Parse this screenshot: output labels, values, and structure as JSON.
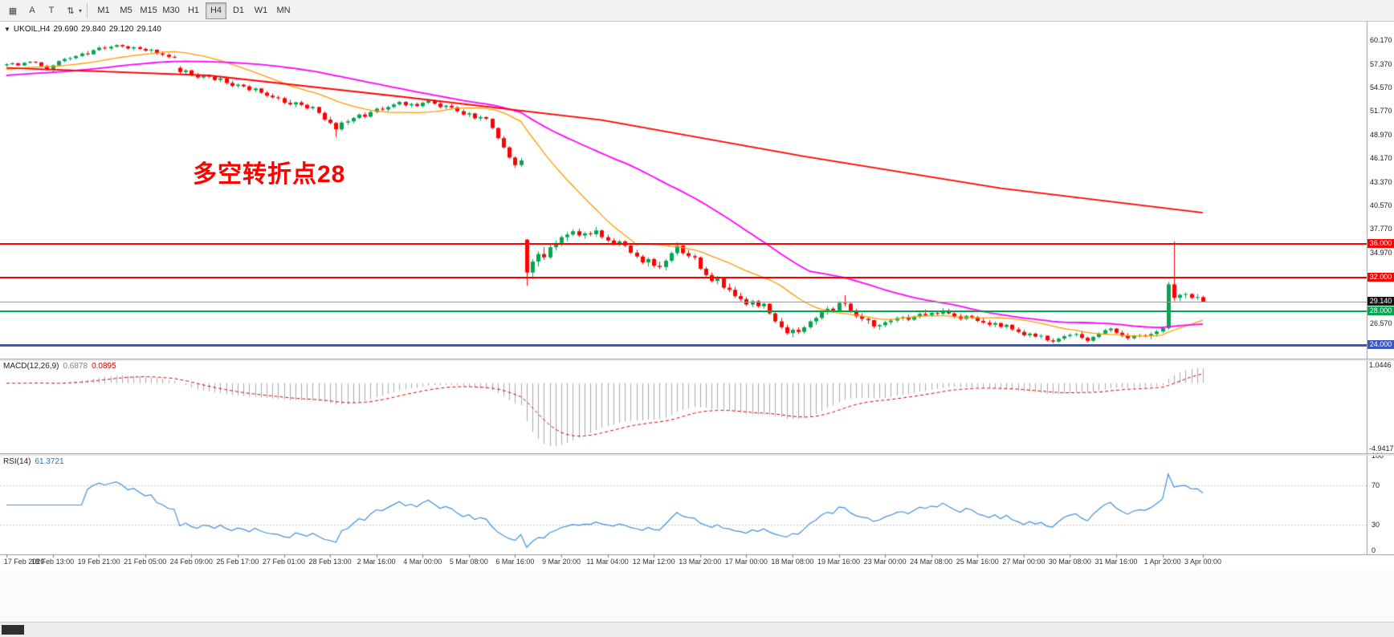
{
  "toolbar": {
    "left_tools": [
      {
        "name": "chart-grid",
        "glyph": "▦"
      },
      {
        "name": "text-label-tool",
        "glyph": "A"
      },
      {
        "name": "crosshair-tool",
        "glyph": "T"
      },
      {
        "name": "indicators-tool",
        "glyph": "⇅"
      }
    ],
    "timeframes": [
      "M1",
      "M5",
      "M15",
      "M30",
      "H1",
      "H4",
      "D1",
      "W1",
      "MN"
    ],
    "active_timeframe": "H4"
  },
  "symbol_bar": {
    "symbol": "UKOIL,H4",
    "open": "29.690",
    "high": "29.840",
    "low": "29.120",
    "close": "29.140"
  },
  "annotation": {
    "text": "多空转折点28",
    "color": "#ff0000"
  },
  "hlines": [
    {
      "price": "36.000",
      "value": 36.0,
      "color": "#ff0000",
      "thickness": 2
    },
    {
      "price": "32.000",
      "value": 32.0,
      "color": "#ff0000",
      "thickness": 2
    },
    {
      "price": "28.000",
      "value": 28.0,
      "color": "#00a651",
      "thickness": 2
    },
    {
      "price": "24.000",
      "value": 24.0,
      "color": "#3a57c0",
      "thickness": 3
    }
  ],
  "bid": {
    "price": "29.140",
    "value": 29.14,
    "line_color": "#9a9a9a",
    "label_bg": "#141414"
  },
  "price_axis": {
    "ticks": [
      {
        "label": "60.170",
        "value": 60.17
      },
      {
        "label": "57.370",
        "value": 57.37
      },
      {
        "label": "54.570",
        "value": 54.57
      },
      {
        "label": "51.770",
        "value": 51.77
      },
      {
        "label": "48.970",
        "value": 48.97
      },
      {
        "label": "46.170",
        "value": 46.17
      },
      {
        "label": "43.370",
        "value": 43.37
      },
      {
        "label": "40.570",
        "value": 40.57
      },
      {
        "label": "37.770",
        "value": 37.77
      },
      {
        "label": "34.970",
        "value": 34.97
      },
      {
        "label": "26.570",
        "value": 26.57
      }
    ]
  },
  "macd_panel": {
    "label": "MACD(12,26,9)",
    "value_main": "0.6878",
    "value_signal": "0.0895",
    "axis_max": "1.0446",
    "axis_min": "-4.9417",
    "histogram_color": "#a9a9a9",
    "signal_color": "#dd0000"
  },
  "rsi_panel": {
    "label": "RSI(14)",
    "value": "61.3721",
    "line_color": "#3f8fdd",
    "levels": [
      {
        "label": "100",
        "value": 100
      },
      {
        "label": "70",
        "value": 70
      },
      {
        "label": "30",
        "value": 30
      },
      {
        "label": "0",
        "value": 0
      }
    ]
  },
  "date_axis": {
    "labels": [
      "17 Feb 2020",
      "18 Feb 13:00",
      "19 Feb 21:00",
      "21 Feb 05:00",
      "24 Feb 09:00",
      "25 Feb 17:00",
      "27 Feb 01:00",
      "28 Feb 13:00",
      "2 Mar 16:00",
      "4 Mar 00:00",
      "5 Mar 08:00",
      "6 Mar 16:00",
      "9 Mar 20:00",
      "11 Mar 04:00",
      "12 Mar 12:00",
      "13 Mar 20:00",
      "17 Mar 00:00",
      "18 Mar 08:00",
      "19 Mar 16:00",
      "23 Mar 00:00",
      "24 Mar 08:00",
      "25 Mar 16:00",
      "27 Mar 00:00",
      "30 Mar 08:00",
      "31 Mar 16:00",
      "1 Apr 20:00",
      "3 Apr 00:00"
    ]
  },
  "chart_data": {
    "type": "candlestick",
    "symbol": "UKOIL",
    "timeframe": "H4",
    "up_color": "#00a651",
    "down_color": "#ff0000",
    "ma_fast_period": 20,
    "ma_fast_color": "#ff9900",
    "ma_slow_period": 50,
    "ma_slow_color": "#ff00ff",
    "ma_seed_start": 54.8,
    "ma_seed_end": 57.1,
    "trend_line": {
      "color": "#ff0000",
      "points": [
        [
          0,
          56.9
        ],
        [
          35,
          56.0
        ],
        [
          68,
          53.5
        ],
        [
          103,
          50.7
        ],
        [
          138,
          46.4
        ],
        [
          172,
          42.6
        ],
        [
          207,
          39.7
        ]
      ]
    },
    "y_axis": {
      "top_price": 62.4,
      "bottom_price": 22.4,
      "tick_step": 2.8
    },
    "candles": [
      [
        57.2,
        57.45,
        57.05,
        57.32
      ],
      [
        57.32,
        57.55,
        57.25,
        57.45
      ],
      [
        57.45,
        57.5,
        57.1,
        57.18
      ],
      [
        57.18,
        57.58,
        57.12,
        57.5
      ],
      [
        57.5,
        57.72,
        57.4,
        57.62
      ],
      [
        57.62,
        57.7,
        57.45,
        57.55
      ],
      [
        57.55,
        57.6,
        57.0,
        57.1
      ],
      [
        57.1,
        57.25,
        56.55,
        56.7
      ],
      [
        56.7,
        57.3,
        56.3,
        57.2
      ],
      [
        57.2,
        57.8,
        57.1,
        57.7
      ],
      [
        57.7,
        58.1,
        57.55,
        57.95
      ],
      [
        57.95,
        58.2,
        57.75,
        58.05
      ],
      [
        58.05,
        58.4,
        57.9,
        58.3
      ],
      [
        58.3,
        58.75,
        58.2,
        58.6
      ],
      [
        58.6,
        58.9,
        58.35,
        58.5
      ],
      [
        58.5,
        59.1,
        58.45,
        59.0
      ],
      [
        59.0,
        59.45,
        58.9,
        59.3
      ],
      [
        59.3,
        59.5,
        59.05,
        59.2
      ],
      [
        59.2,
        59.55,
        59.0,
        59.4
      ],
      [
        59.4,
        59.7,
        59.3,
        59.6
      ],
      [
        59.6,
        59.7,
        59.3,
        59.45
      ],
      [
        59.45,
        59.55,
        59.05,
        59.2
      ],
      [
        59.2,
        59.45,
        58.95,
        59.35
      ],
      [
        59.35,
        59.5,
        59.05,
        59.15
      ],
      [
        59.15,
        59.3,
        58.8,
        58.95
      ],
      [
        58.95,
        59.2,
        58.7,
        59.05
      ],
      [
        59.05,
        59.1,
        58.45,
        58.6
      ],
      [
        58.6,
        58.85,
        58.3,
        58.45
      ],
      [
        58.45,
        58.6,
        58.05,
        58.2
      ],
      [
        58.2,
        58.4,
        58.0,
        58.15
      ],
      [
        56.9,
        57.1,
        56.2,
        56.4
      ],
      [
        56.4,
        56.75,
        56.1,
        56.6
      ],
      [
        56.6,
        56.7,
        55.9,
        56.05
      ],
      [
        56.05,
        56.3,
        55.6,
        55.75
      ],
      [
        55.75,
        56.1,
        55.55,
        55.95
      ],
      [
        55.95,
        56.15,
        55.7,
        55.85
      ],
      [
        55.85,
        56.0,
        55.3,
        55.45
      ],
      [
        55.45,
        55.8,
        55.2,
        55.65
      ],
      [
        55.65,
        55.7,
        54.95,
        55.1
      ],
      [
        55.1,
        55.35,
        54.6,
        54.75
      ],
      [
        54.75,
        55.05,
        54.5,
        54.9
      ],
      [
        54.9,
        55.0,
        54.55,
        54.7
      ],
      [
        54.7,
        54.85,
        54.1,
        54.25
      ],
      [
        54.25,
        54.6,
        54.0,
        54.45
      ],
      [
        54.45,
        54.5,
        53.8,
        53.95
      ],
      [
        53.95,
        54.15,
        53.45,
        53.6
      ],
      [
        53.6,
        53.85,
        53.25,
        53.4
      ],
      [
        53.4,
        53.6,
        53.1,
        53.3
      ],
      [
        53.3,
        53.45,
        52.6,
        52.75
      ],
      [
        52.75,
        53.1,
        52.4,
        52.55
      ],
      [
        52.55,
        52.9,
        52.2,
        52.8
      ],
      [
        52.8,
        53.0,
        52.35,
        52.5
      ],
      [
        52.5,
        52.65,
        51.95,
        52.1
      ],
      [
        52.1,
        52.4,
        51.9,
        52.25
      ],
      [
        52.25,
        52.3,
        51.4,
        51.55
      ],
      [
        51.55,
        51.7,
        50.6,
        50.75
      ],
      [
        50.75,
        51.1,
        50.2,
        50.35
      ],
      [
        50.35,
        50.5,
        48.7,
        49.6
      ],
      [
        49.6,
        50.6,
        49.4,
        50.4
      ],
      [
        50.4,
        50.8,
        50.1,
        50.55
      ],
      [
        50.55,
        51.1,
        50.3,
        50.95
      ],
      [
        50.95,
        51.5,
        50.8,
        51.35
      ],
      [
        51.35,
        51.6,
        50.9,
        51.1
      ],
      [
        51.1,
        51.8,
        51.0,
        51.65
      ],
      [
        51.65,
        52.2,
        51.5,
        52.05
      ],
      [
        52.05,
        52.3,
        51.8,
        51.95
      ],
      [
        51.95,
        52.4,
        51.7,
        52.25
      ],
      [
        52.25,
        52.7,
        52.1,
        52.55
      ],
      [
        52.55,
        53.0,
        52.4,
        52.85
      ],
      [
        52.85,
        52.95,
        52.3,
        52.45
      ],
      [
        52.45,
        52.75,
        52.2,
        52.6
      ],
      [
        52.6,
        52.8,
        52.25,
        52.35
      ],
      [
        52.35,
        52.9,
        52.2,
        52.75
      ],
      [
        52.75,
        53.2,
        52.6,
        53.0
      ],
      [
        53.0,
        53.1,
        52.5,
        52.65
      ],
      [
        52.65,
        52.85,
        52.1,
        52.25
      ],
      [
        52.25,
        52.55,
        52.0,
        52.4
      ],
      [
        52.4,
        52.6,
        52.1,
        52.2
      ],
      [
        52.2,
        52.35,
        51.6,
        51.75
      ],
      [
        51.75,
        51.95,
        51.2,
        51.35
      ],
      [
        51.35,
        51.65,
        51.05,
        51.5
      ],
      [
        51.5,
        51.55,
        50.75,
        50.9
      ],
      [
        50.9,
        51.25,
        50.6,
        51.05
      ],
      [
        51.05,
        51.15,
        50.7,
        50.85
      ],
      [
        50.85,
        50.9,
        49.6,
        49.75
      ],
      [
        49.75,
        49.85,
        48.4,
        48.55
      ],
      [
        48.55,
        48.8,
        47.3,
        47.45
      ],
      [
        47.45,
        47.6,
        46.1,
        46.25
      ],
      [
        46.25,
        46.4,
        45.0,
        45.35
      ],
      [
        45.35,
        46.2,
        45.1,
        45.9
      ],
      [
        36.5,
        36.6,
        31.02,
        32.6
      ],
      [
        32.6,
        34.2,
        31.8,
        33.9
      ],
      [
        33.9,
        35.1,
        33.3,
        34.8
      ],
      [
        34.8,
        35.6,
        34.1,
        34.4
      ],
      [
        34.4,
        35.9,
        34.2,
        35.6
      ],
      [
        35.6,
        36.4,
        35.2,
        36.1
      ],
      [
        36.1,
        37.0,
        35.7,
        36.8
      ],
      [
        36.8,
        37.4,
        36.3,
        37.1
      ],
      [
        37.1,
        37.75,
        36.9,
        37.5
      ],
      [
        37.5,
        37.8,
        36.8,
        37.0
      ],
      [
        37.0,
        37.45,
        36.6,
        37.25
      ],
      [
        37.25,
        37.5,
        36.9,
        37.15
      ],
      [
        37.15,
        38.0,
        36.9,
        37.6
      ],
      [
        37.6,
        37.7,
        36.6,
        36.8
      ],
      [
        36.8,
        37.1,
        36.2,
        36.4
      ],
      [
        36.4,
        36.7,
        35.8,
        35.95
      ],
      [
        35.95,
        36.5,
        35.7,
        36.3
      ],
      [
        36.3,
        36.45,
        35.6,
        35.8
      ],
      [
        35.8,
        35.9,
        34.8,
        34.95
      ],
      [
        34.95,
        35.3,
        34.3,
        34.5
      ],
      [
        34.5,
        34.7,
        33.6,
        33.8
      ],
      [
        33.8,
        34.4,
        33.3,
        34.2
      ],
      [
        34.2,
        34.35,
        33.2,
        33.4
      ],
      [
        33.4,
        33.9,
        33.0,
        33.25
      ],
      [
        33.25,
        34.2,
        32.85,
        34.0
      ],
      [
        34.0,
        35.1,
        33.8,
        34.9
      ],
      [
        34.9,
        36.2,
        34.6,
        35.8
      ],
      [
        35.8,
        35.95,
        34.7,
        34.9
      ],
      [
        34.9,
        35.3,
        34.3,
        34.55
      ],
      [
        34.55,
        34.8,
        34.1,
        34.4
      ],
      [
        34.4,
        34.5,
        32.9,
        33.05
      ],
      [
        33.05,
        33.3,
        32.1,
        32.3
      ],
      [
        32.3,
        32.6,
        31.4,
        31.6
      ],
      [
        31.6,
        32.2,
        31.2,
        31.95
      ],
      [
        31.95,
        32.1,
        30.6,
        30.8
      ],
      [
        30.8,
        31.3,
        30.3,
        30.55
      ],
      [
        30.55,
        30.9,
        29.6,
        29.8
      ],
      [
        29.8,
        30.2,
        29.2,
        29.45
      ],
      [
        29.45,
        29.7,
        28.6,
        28.8
      ],
      [
        28.8,
        29.4,
        28.5,
        29.2
      ],
      [
        29.2,
        29.35,
        28.4,
        28.6
      ],
      [
        28.6,
        29.0,
        28.3,
        28.9
      ],
      [
        28.9,
        28.95,
        27.6,
        27.75
      ],
      [
        27.75,
        27.9,
        26.6,
        26.8
      ],
      [
        26.8,
        27.2,
        25.9,
        26.1
      ],
      [
        26.1,
        26.4,
        25.2,
        25.4
      ],
      [
        25.4,
        26.0,
        24.9,
        25.8
      ],
      [
        25.8,
        26.1,
        25.3,
        25.55
      ],
      [
        25.55,
        26.3,
        25.3,
        26.1
      ],
      [
        26.1,
        27.0,
        25.9,
        26.8
      ],
      [
        26.8,
        27.4,
        26.4,
        27.2
      ],
      [
        27.2,
        28.1,
        27.0,
        27.9
      ],
      [
        27.9,
        28.6,
        27.6,
        28.3
      ],
      [
        28.3,
        28.5,
        27.8,
        28.05
      ],
      [
        28.05,
        29.2,
        27.9,
        29.0
      ],
      [
        29.0,
        29.9,
        28.6,
        28.9
      ],
      [
        28.9,
        29.1,
        27.8,
        28.0
      ],
      [
        28.0,
        28.3,
        27.2,
        27.4
      ],
      [
        27.4,
        27.8,
        26.8,
        27.1
      ],
      [
        27.1,
        27.3,
        26.5,
        26.95
      ],
      [
        26.95,
        27.0,
        26.0,
        26.2
      ],
      [
        26.2,
        26.5,
        25.8,
        26.35
      ],
      [
        26.35,
        26.9,
        26.1,
        26.7
      ],
      [
        26.7,
        27.1,
        26.4,
        26.9
      ],
      [
        26.9,
        27.4,
        26.7,
        27.2
      ],
      [
        27.2,
        27.45,
        26.9,
        27.3
      ],
      [
        27.3,
        27.6,
        26.8,
        27.0
      ],
      [
        27.0,
        27.5,
        26.85,
        27.35
      ],
      [
        27.35,
        27.9,
        27.15,
        27.7
      ],
      [
        27.7,
        28.2,
        27.4,
        27.55
      ],
      [
        27.55,
        27.95,
        27.3,
        27.8
      ],
      [
        27.8,
        28.0,
        27.5,
        27.7
      ],
      [
        27.7,
        28.4,
        27.5,
        28.1
      ],
      [
        28.1,
        28.3,
        27.6,
        27.75
      ],
      [
        27.75,
        28.0,
        27.2,
        27.4
      ],
      [
        27.4,
        27.7,
        26.9,
        27.1
      ],
      [
        27.1,
        27.55,
        26.95,
        27.45
      ],
      [
        27.45,
        27.6,
        27.1,
        27.3
      ],
      [
        27.3,
        27.45,
        26.7,
        26.85
      ],
      [
        26.85,
        27.2,
        26.5,
        26.65
      ],
      [
        26.65,
        26.95,
        26.2,
        26.4
      ],
      [
        26.4,
        26.8,
        26.1,
        26.6
      ],
      [
        26.6,
        26.7,
        26.0,
        26.15
      ],
      [
        26.15,
        26.5,
        25.95,
        26.4
      ],
      [
        26.4,
        26.45,
        25.7,
        25.85
      ],
      [
        25.85,
        26.1,
        25.4,
        25.55
      ],
      [
        25.55,
        25.8,
        25.0,
        25.15
      ],
      [
        25.15,
        25.5,
        24.9,
        25.35
      ],
      [
        25.35,
        25.45,
        24.85,
        25.0
      ],
      [
        25.0,
        25.3,
        24.8,
        25.1
      ],
      [
        25.1,
        25.15,
        24.4,
        24.55
      ],
      [
        24.55,
        24.8,
        24.2,
        24.4
      ],
      [
        24.4,
        24.9,
        24.25,
        24.75
      ],
      [
        24.75,
        25.2,
        24.55,
        25.05
      ],
      [
        25.05,
        25.4,
        24.85,
        25.2
      ],
      [
        25.2,
        25.45,
        25.0,
        25.3
      ],
      [
        25.3,
        25.6,
        24.7,
        24.85
      ],
      [
        24.85,
        25.0,
        24.3,
        24.5
      ],
      [
        24.5,
        25.1,
        24.35,
        24.95
      ],
      [
        24.95,
        25.5,
        24.8,
        25.35
      ],
      [
        25.35,
        25.9,
        25.2,
        25.75
      ],
      [
        25.75,
        26.1,
        25.5,
        25.95
      ],
      [
        25.95,
        26.0,
        25.3,
        25.45
      ],
      [
        25.45,
        25.7,
        24.9,
        25.1
      ],
      [
        25.1,
        25.4,
        24.6,
        24.8
      ],
      [
        24.8,
        25.2,
        24.65,
        25.05
      ],
      [
        25.05,
        25.35,
        24.85,
        25.15
      ],
      [
        25.15,
        25.3,
        24.9,
        25.1
      ],
      [
        25.1,
        25.5,
        24.7,
        25.3
      ],
      [
        25.3,
        25.8,
        25.0,
        25.6
      ],
      [
        25.6,
        26.2,
        25.4,
        26.0
      ],
      [
        26.0,
        31.5,
        25.8,
        31.2
      ],
      [
        31.2,
        36.29,
        29.2,
        29.6
      ],
      [
        29.6,
        30.1,
        29.2,
        29.95
      ],
      [
        29.95,
        30.25,
        29.55,
        30.05
      ],
      [
        30.05,
        30.15,
        29.45,
        29.6
      ],
      [
        29.6,
        30.05,
        29.35,
        29.69
      ],
      [
        29.69,
        29.84,
        29.12,
        29.14
      ]
    ]
  }
}
